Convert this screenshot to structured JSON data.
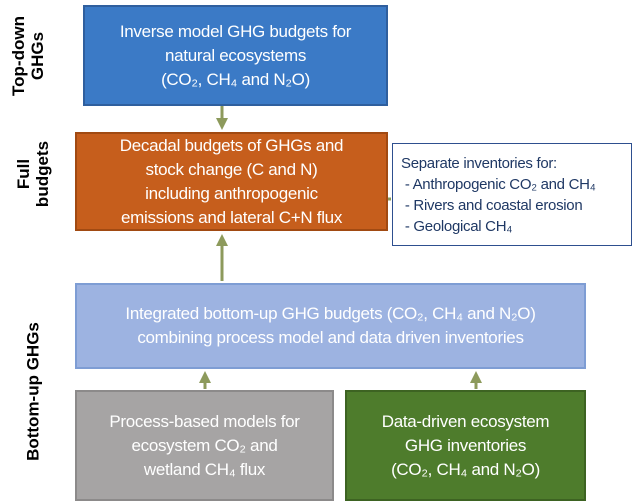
{
  "side_labels": {
    "top": [
      "Top-down",
      "GHGs"
    ],
    "full": [
      "Full",
      "budgets"
    ],
    "bottom": [
      "Bottom-up GHGs"
    ]
  },
  "boxes": {
    "inverse": {
      "lines": [
        "Inverse model GHG budgets for",
        "natural ecosystems",
        "(CO₂, CH₄ and N₂O)"
      ]
    },
    "decadal": {
      "lines": [
        "Decadal budgets of GHGs and",
        "stock change (C and N)",
        "including anthropogenic",
        "emissions and lateral C+N flux"
      ]
    },
    "inventories": {
      "title": "Separate inventories for:",
      "items": [
        " - Anthropogenic CO₂ and CH₄",
        " - Rivers and coastal erosion",
        " - Geological CH₄"
      ]
    },
    "integrated": {
      "lines": [
        "Integrated bottom-up GHG budgets (CO₂, CH₄ and N₂O)",
        "combining process model and data driven inventories"
      ]
    },
    "process": {
      "lines": [
        "Process-based models for",
        "ecosystem CO₂ and",
        "wetland CH₄ flux"
      ]
    },
    "datadriven": {
      "lines": [
        "Data-driven ecosystem",
        "GHG inventories",
        "(CO₂, CH₄ and N₂O)"
      ]
    }
  }
}
